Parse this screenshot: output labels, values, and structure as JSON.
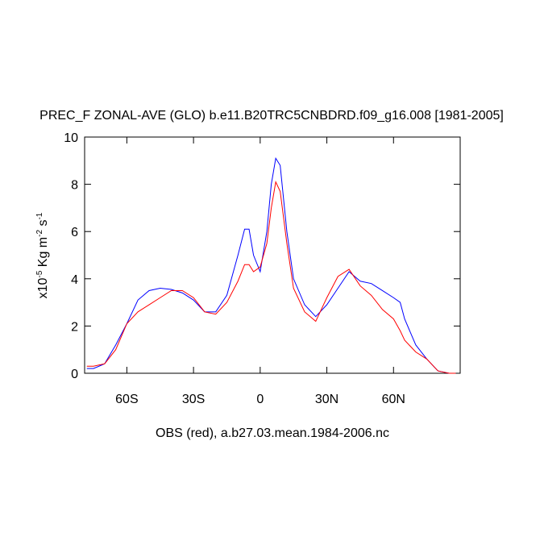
{
  "chart_data": {
    "type": "line",
    "title": "PREC_F ZONAL-AVE (GLO) b.e11.B20TRC5CNBDRD.f09_g16.008 [1981-2005]",
    "x_label": "OBS (red), a.b27.03.mean.1984-2006.nc",
    "y_label": [
      "x10",
      "-5",
      " Kg m",
      "-2",
      " s",
      "-1"
    ],
    "x": [
      -78,
      -75,
      -70,
      -65,
      -60,
      -55,
      -50,
      -45,
      -40,
      -35,
      -30,
      -25,
      -20,
      -15,
      -10,
      -7,
      -5,
      -3,
      0,
      3,
      5,
      7,
      9,
      12,
      15,
      20,
      25,
      30,
      35,
      40,
      45,
      50,
      55,
      60,
      63,
      65,
      70,
      75,
      80,
      85,
      88
    ],
    "series": [
      {
        "color": "#0000ff",
        "values": [
          0.2,
          0.2,
          0.4,
          1.2,
          2.1,
          3.1,
          3.5,
          3.6,
          3.55,
          3.4,
          3.1,
          2.6,
          2.6,
          3.3,
          5.0,
          6.1,
          6.1,
          5.0,
          4.3,
          6.0,
          8.0,
          9.1,
          8.8,
          6.0,
          4.0,
          2.9,
          2.4,
          2.9,
          3.6,
          4.3,
          3.9,
          3.8,
          3.5,
          3.2,
          3.0,
          2.3,
          1.2,
          0.6,
          0.1,
          0.0,
          0.0
        ]
      },
      {
        "color": "#ff0000",
        "values": [
          0.3,
          0.3,
          0.4,
          1.0,
          2.1,
          2.6,
          2.9,
          3.2,
          3.5,
          3.5,
          3.2,
          2.6,
          2.5,
          3.0,
          3.9,
          4.6,
          4.6,
          4.3,
          4.5,
          5.5,
          7.0,
          8.1,
          7.7,
          5.5,
          3.6,
          2.6,
          2.2,
          3.2,
          4.1,
          4.4,
          3.7,
          3.3,
          2.7,
          2.3,
          1.8,
          1.4,
          0.9,
          0.6,
          0.1,
          0.0,
          0.0
        ]
      }
    ],
    "xlim": [
      -79,
      90
    ],
    "xticks": [
      {
        "value": -60,
        "label": "60S"
      },
      {
        "value": -30,
        "label": "30S"
      },
      0,
      {
        "value": 30,
        "label": "30N"
      },
      {
        "value": 60,
        "label": "60N"
      }
    ],
    "ylim": [
      0,
      10
    ],
    "yticks": [
      0,
      2,
      4,
      6,
      8,
      10
    ]
  }
}
